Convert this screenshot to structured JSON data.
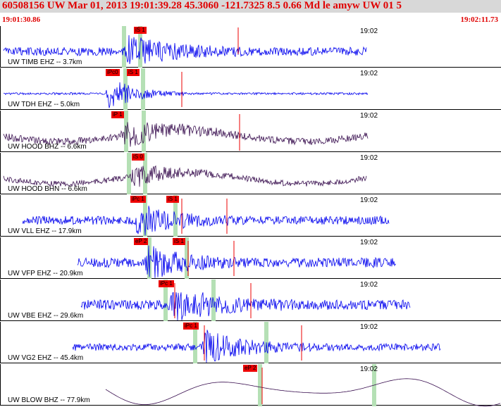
{
  "header": {
    "title": "60508156 UW Mar 01, 2013 19:01:39.28    45.3060 -121.7325  8.5 0.66 Md le amyw UW 01    5",
    "time_start": "19:01:30.86",
    "time_end": "19:02:11.73"
  },
  "colors": {
    "title": "#e00000",
    "wave_blue": "#0000ee",
    "wave_dark": "#3a1050",
    "pick_red": "#ee0000",
    "window_green": "#b5e0b5"
  },
  "panels": [
    {
      "label": "UW TIMB EHZ -- 3.7km",
      "tick": "19:02",
      "picks": [
        "iS 1"
      ]
    },
    {
      "label": "UW TDH EHZ -- 5.0km",
      "tick": "19:02",
      "picks": [
        "iPc0",
        "iS 1"
      ]
    },
    {
      "label": "UW HOOD BHZ -- 6.6km",
      "tick": "19:02",
      "picks": [
        "iP 1"
      ]
    },
    {
      "label": "UW HOOD BHN -- 6.6km",
      "tick": "19:02",
      "picks": [
        "iS 0"
      ]
    },
    {
      "label": "UW VLL EHZ -- 17.9km",
      "tick": "19:02",
      "picks": [
        "iPc 1",
        "iS 1"
      ]
    },
    {
      "label": "UW VFP EHZ -- 20.9km",
      "tick": "19:02",
      "picks": [
        "eP 2",
        "iS 1"
      ]
    },
    {
      "label": "UW VBE EHZ -- 29.6km",
      "tick": "19:02",
      "picks": [
        "iPc 1"
      ]
    },
    {
      "label": "UW VG2 EHZ -- 45.4km",
      "tick": "19:02",
      "picks": [
        "iPc 1"
      ]
    },
    {
      "label": "UW BLOW BHZ -- 77.9km",
      "tick": "19:02",
      "picks": [
        "eP 2"
      ]
    }
  ]
}
